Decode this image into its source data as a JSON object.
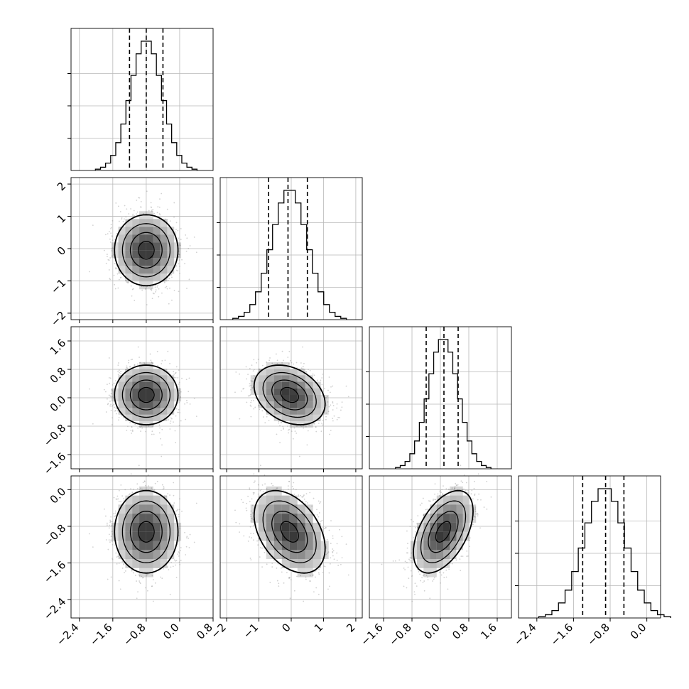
{
  "chart_data": {
    "type": "corner",
    "title": "",
    "params": [
      {
        "mu": -0.8,
        "sd": 0.38,
        "q": [
          -1.2,
          -0.8,
          -0.4
        ]
      },
      {
        "mu": -0.05,
        "sd": 0.55,
        "q": [
          -0.7,
          -0.1,
          0.5
        ]
      },
      {
        "mu": 0.08,
        "sd": 0.42,
        "q": [
          -0.4,
          0.1,
          0.5
        ]
      },
      {
        "mu": -0.92,
        "sd": 0.45,
        "q": [
          -1.4,
          -0.9,
          -0.5
        ]
      }
    ],
    "correlations": [
      [
        1,
        0,
        0,
        0
      ],
      [
        0,
        1,
        -0.3,
        -0.4
      ],
      [
        0,
        -0.3,
        1,
        0.5
      ],
      [
        0,
        -0.4,
        0.5,
        1
      ]
    ],
    "ranges": [
      [
        -2.6,
        0.8
      ],
      [
        -2.2,
        2.2
      ],
      [
        -2.0,
        2.0
      ],
      [
        -2.8,
        0.3
      ]
    ],
    "ticks": [
      {
        "values": [
          -2.4,
          -1.6,
          -0.8,
          0.0,
          0.8
        ],
        "labels": [
          "−2.4",
          "−1.6",
          "−0.8",
          "0.0",
          "0.8"
        ]
      },
      {
        "values": [
          -2,
          -1,
          0,
          1,
          2
        ],
        "labels": [
          "−2",
          "−1",
          "0",
          "1",
          "2"
        ]
      },
      {
        "values": [
          -1.6,
          -0.8,
          0.0,
          0.8,
          1.6
        ],
        "labels": [
          "−1.6",
          "−0.8",
          "0.0",
          "0.8",
          "1.6"
        ]
      },
      {
        "values": [
          -2.4,
          -1.6,
          -0.8,
          0.0
        ],
        "labels": [
          "−2.4",
          "−1.6",
          "−0.8",
          "0.0"
        ]
      }
    ],
    "hist_bins": 20,
    "scatter_points": 1400,
    "density_grid": 10,
    "contour_levels_sigma": [
      0.5,
      1.0,
      1.5,
      2.0
    ],
    "grid": true,
    "quantile_line_style": "dashed",
    "colors": {
      "points": "#9a9a9a",
      "density": "#000000",
      "lines": "#000000",
      "grid": "#b8b8b8",
      "fill": "#ffffff"
    }
  }
}
